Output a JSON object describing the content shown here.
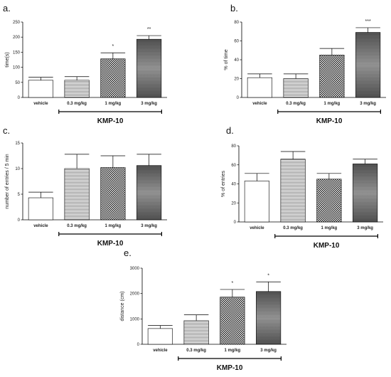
{
  "chart_data": [
    {
      "panel": "a.",
      "type": "bar",
      "categories": [
        "vehicle",
        "0.3 mg/kg",
        "1 mg/kg",
        "3 mg/kg"
      ],
      "values": [
        57,
        57,
        128,
        193
      ],
      "errors": [
        10,
        12,
        20,
        12
      ],
      "significance": [
        "",
        "",
        "*",
        "**"
      ],
      "ylabel": "time(s)",
      "ylim": [
        0,
        250
      ],
      "yticks": [
        0,
        50,
        100,
        150,
        200,
        250
      ],
      "group_label": "KMP-10",
      "group_span": [
        1,
        3
      ]
    },
    {
      "panel": "b.",
      "type": "bar",
      "categories": [
        "vehicle",
        "0.3 mg/kg",
        "1 mg/kg",
        "3 mg/kg"
      ],
      "values": [
        21,
        20,
        45,
        69
      ],
      "errors": [
        4,
        5,
        7,
        5
      ],
      "significance": [
        "",
        "",
        "",
        "***"
      ],
      "ylabel": "% of time",
      "ylim": [
        0,
        80
      ],
      "yticks": [
        0,
        20,
        40,
        60,
        80
      ],
      "group_label": "KMP-10",
      "group_span": [
        1,
        3
      ]
    },
    {
      "panel": "c.",
      "type": "bar",
      "categories": [
        "vehicle",
        "0.3 mg/kg",
        "1 mg/kg",
        "3 mg/kg"
      ],
      "values": [
        4.3,
        10.0,
        10.2,
        10.6
      ],
      "errors": [
        1.1,
        2.8,
        2.3,
        2.2
      ],
      "significance": [
        "",
        "",
        "",
        ""
      ],
      "ylabel": "number of entries / 5 min",
      "ylim": [
        0,
        15
      ],
      "yticks": [
        0,
        5,
        10,
        15
      ],
      "group_label": "KMP-10",
      "group_span": [
        1,
        3
      ]
    },
    {
      "panel": "d.",
      "type": "bar",
      "categories": [
        "vehicle",
        "0.3 mg/kg",
        "1 mg/kg",
        "3 mg/kg"
      ],
      "values": [
        43,
        66,
        45,
        61
      ],
      "errors": [
        8,
        8,
        6,
        5
      ],
      "significance": [
        "",
        "",
        "",
        ""
      ],
      "ylabel": "% of entries",
      "ylim": [
        0,
        80
      ],
      "yticks": [
        0,
        20,
        40,
        60,
        80
      ],
      "group_label": "KMP-10",
      "group_span": [
        1,
        3
      ]
    },
    {
      "panel": "e.",
      "type": "bar",
      "categories": [
        "vehicle",
        "0.3 mg/kg",
        "1 mg/kg",
        "3 mg/kg"
      ],
      "values": [
        620,
        930,
        1860,
        2080
      ],
      "errors": [
        120,
        230,
        300,
        380
      ],
      "significance": [
        "",
        "",
        "*",
        "*"
      ],
      "ylabel": "distance (cm)",
      "ylim": [
        0,
        3000
      ],
      "yticks": [
        0,
        1000,
        2000,
        3000
      ],
      "group_label": "KMP-10",
      "group_span": [
        1,
        3
      ]
    }
  ],
  "bar_fills": [
    "#ffffff",
    "hlines",
    "checker",
    "gradient"
  ]
}
